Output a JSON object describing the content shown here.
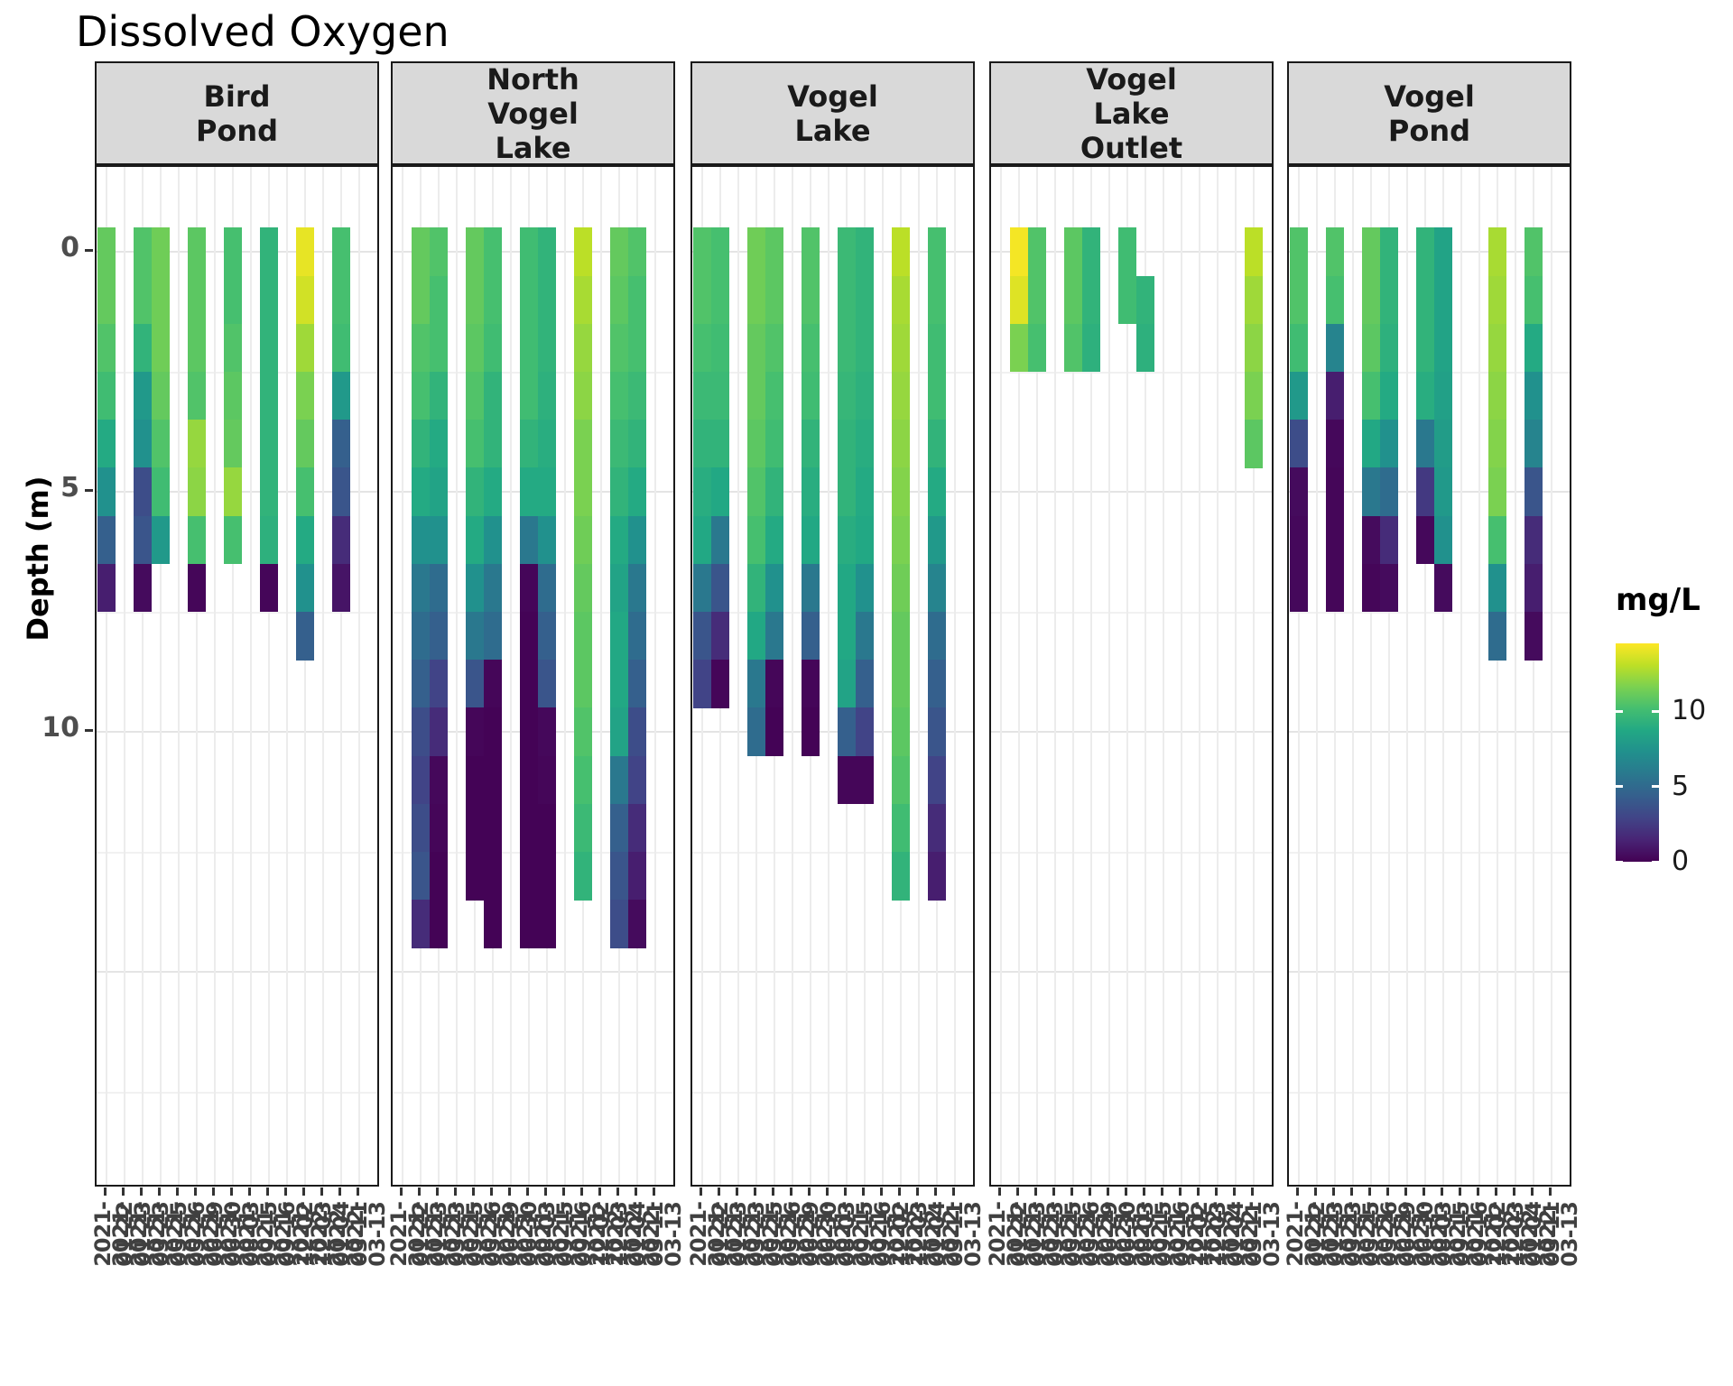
{
  "title": "Dissolved Oxygen",
  "y_axis": {
    "title": "Depth (m)",
    "tick_labels": [
      "0",
      "5",
      "10"
    ],
    "tick_depths": [
      0,
      5,
      10
    ]
  },
  "legend": {
    "title": "mg/L",
    "tick_labels": [
      "10",
      "5",
      "0"
    ],
    "tick_values": [
      10,
      5,
      0
    ],
    "domain_min": 0,
    "domain_max": 14.5
  },
  "colors": {
    "strip_fill": "#d9d9d9",
    "panel_border": "#1a1a1a",
    "viridis_low": "#440154",
    "viridis_mid": "#21918c",
    "viridis_high": "#fde725"
  },
  "chart_data": {
    "type": "heatmap",
    "title": "Dissolved Oxygen",
    "xlabel": "",
    "ylabel": "Depth (m)",
    "value_label": "mg/L",
    "value_range": [
      0,
      14.5
    ],
    "depth_range": [
      0,
      14
    ],
    "grid": true,
    "legend_position": "right",
    "x_dates": [
      "2021-01-22",
      "2021-01-23",
      "2021-03-23",
      "2021-05-25",
      "2021-05-26",
      "2021-06-29",
      "2021-06-30",
      "2021-08-03",
      "2021-09-15",
      "2021-09-16",
      "2021-12-02",
      "2021-12-03",
      "2022-01-04",
      "2022-03-11",
      "2022-03-13"
    ],
    "facets": [
      {
        "site": "Bird Pond",
        "profiles": [
          {
            "date": "2021-01-22",
            "start_depth": 0,
            "values": [
              11,
              11,
              10.5,
              10,
              8.8,
              7.3,
              4.4,
              1.2
            ]
          },
          {
            "date": "2021-03-23",
            "start_depth": 0,
            "values": [
              10.5,
              10.5,
              9.4,
              7.8,
              7.3,
              3.4,
              3.8,
              0.4
            ]
          },
          {
            "date": "2021-05-25",
            "start_depth": 0,
            "values": [
              11.3,
              11.3,
              11.3,
              11,
              10.5,
              10,
              7.8
            ]
          },
          {
            "date": "2021-06-29",
            "start_depth": 0,
            "values": [
              10.8,
              10.8,
              10.8,
              10.5,
              12.2,
              12,
              10.2,
              0.2
            ]
          },
          {
            "date": "2021-08-03",
            "start_depth": 0,
            "values": [
              10.2,
              10.2,
              10.5,
              10.8,
              11,
              12.2,
              10.2
            ]
          },
          {
            "date": "2021-09-16",
            "start_depth": 0,
            "values": [
              9.4,
              9.4,
              9.4,
              9.4,
              9.4,
              9.4,
              9.2,
              0.2
            ]
          },
          {
            "date": "2021-12-03",
            "start_depth": 0,
            "values": [
              14,
              13.5,
              12.4,
              11.6,
              11,
              10.2,
              8.8,
              7.3,
              4.4
            ]
          },
          {
            "date": "2022-03-11",
            "start_depth": 0,
            "values": [
              10.2,
              10.2,
              10,
              7.8,
              4.4,
              3.8,
              1.8,
              0.8
            ]
          }
        ]
      },
      {
        "site": "North Vogel Lake",
        "profiles": [
          {
            "date": "2021-01-23",
            "start_depth": 0,
            "values": [
              11,
              11,
              10.5,
              10.2,
              9.4,
              8.8,
              7.3,
              5.8,
              5.1,
              4.4,
              3.4,
              2.9,
              3.4,
              3.8,
              1.8
            ]
          },
          {
            "date": "2021-03-23",
            "start_depth": 0,
            "values": [
              10.5,
              10.2,
              10.2,
              9.4,
              8.8,
              8.4,
              7.3,
              5.1,
              4.4,
              2.9,
              1.8,
              0.3,
              0.2,
              0.1,
              0.1
            ]
          },
          {
            "date": "2021-05-26",
            "start_depth": 0,
            "values": [
              11,
              11,
              10.8,
              10.5,
              10.2,
              9.4,
              8.8,
              7.3,
              5.8,
              3.8,
              0.2,
              0.1,
              0.1,
              0.1
            ]
          },
          {
            "date": "2021-06-29",
            "start_depth": 0,
            "values": [
              10.2,
              10.2,
              10,
              9.4,
              9.4,
              8.8,
              7.3,
              5.8,
              5.1,
              0.2,
              0.1,
              0.1,
              0.1,
              0.1,
              0.1
            ]
          },
          {
            "date": "2021-08-03",
            "start_depth": 0,
            "values": [
              10,
              10,
              10,
              10,
              9.4,
              8.8,
              5.8,
              0.2,
              0.1,
              0.1,
              0.1,
              0.1,
              0.1,
              0.1,
              0.1
            ]
          },
          {
            "date": "2021-09-15",
            "start_depth": 0,
            "values": [
              9.4,
              9.4,
              9.4,
              9.2,
              9,
              8.8,
              7.3,
              5.1,
              4.4,
              3.8,
              0.3,
              0.2,
              0.1,
              0.1,
              0.1
            ]
          },
          {
            "date": "2021-12-02",
            "start_depth": 0,
            "values": [
              13,
              12.6,
              12.2,
              12,
              11.6,
              11.6,
              11.3,
              11,
              10.8,
              10.8,
              10.5,
              10.2,
              9.8,
              9.4
            ]
          },
          {
            "date": "2022-01-04",
            "start_depth": 0,
            "values": [
              11,
              10.8,
              10.5,
              10.2,
              9.8,
              9.4,
              8.8,
              8.4,
              8.7,
              8.7,
              8.4,
              5.8,
              4.4,
              3.8,
              3.4
            ]
          },
          {
            "date": "2022-03-11",
            "start_depth": 0,
            "values": [
              10.5,
              10.2,
              10.2,
              9.8,
              9.4,
              8.8,
              7.3,
              5.8,
              5.1,
              4.4,
              3.4,
              2.9,
              1.8,
              1.2,
              0.4
            ]
          }
        ]
      },
      {
        "site": "Vogel Lake",
        "profiles": [
          {
            "date": "2021-01-22",
            "start_depth": 0,
            "values": [
              10.5,
              10.5,
              10.2,
              9.8,
              9.4,
              9,
              8.7,
              5.8,
              3.8,
              2.9
            ]
          },
          {
            "date": "2021-01-23",
            "start_depth": 0,
            "values": [
              10.2,
              10.2,
              10,
              9.8,
              9.4,
              8.7,
              5.8,
              3.8,
              1.8,
              0.2
            ]
          },
          {
            "date": "2021-05-25",
            "start_depth": 0,
            "values": [
              11.3,
              11.3,
              11,
              11,
              10.8,
              10.5,
              10.2,
              9.4,
              8.7,
              5.8,
              5.1
            ]
          },
          {
            "date": "2021-05-26",
            "start_depth": 0,
            "values": [
              10.8,
              10.8,
              10.5,
              10.2,
              10,
              9.4,
              8.8,
              7.3,
              5.8,
              0.2,
              0.1
            ]
          },
          {
            "date": "2021-06-30",
            "start_depth": 0,
            "values": [
              10.5,
              10.5,
              10.2,
              10,
              9.4,
              9,
              8.7,
              5.8,
              4.4,
              0.2,
              0.1
            ]
          },
          {
            "date": "2021-09-15",
            "start_depth": 0,
            "values": [
              9.8,
              9.8,
              9.8,
              9.6,
              9.4,
              9.4,
              9,
              8.7,
              8.7,
              8.4,
              4.4,
              0.2
            ]
          },
          {
            "date": "2021-09-16",
            "start_depth": 0,
            "values": [
              9.4,
              9.4,
              9.4,
              9.2,
              9,
              8.8,
              8.7,
              7.3,
              5.8,
              4.4,
              2.9,
              0.2
            ]
          },
          {
            "date": "2021-12-03",
            "start_depth": 0,
            "values": [
              13,
              12.6,
              12.4,
              12.2,
              12,
              11.8,
              11.6,
              11.3,
              11,
              11,
              10.8,
              10.5,
              10,
              9.4
            ]
          },
          {
            "date": "2022-03-11",
            "start_depth": 0,
            "values": [
              10.2,
              10.2,
              10,
              10,
              9.4,
              8.8,
              7.8,
              6.5,
              5.1,
              4.4,
              3.8,
              2.9,
              1.8,
              1.2
            ]
          }
        ]
      },
      {
        "site": "Vogel Lake Outlet",
        "profiles": [
          {
            "date": "2021-01-23",
            "start_depth": 0,
            "values": [
              14.3,
              13.8,
              11.6
            ]
          },
          {
            "date": "2021-03-23",
            "start_depth": 0,
            "values": [
              10.5,
              10.5,
              10.2
            ]
          },
          {
            "date": "2021-05-26",
            "start_depth": 0,
            "values": [
              10.8,
              10.8,
              10.5
            ]
          },
          {
            "date": "2021-06-29",
            "start_depth": 0,
            "values": [
              9.4,
              9.4,
              9.2
            ]
          },
          {
            "date": "2021-08-03",
            "start_depth": 0,
            "values": [
              10,
              10
            ]
          },
          {
            "date": "2021-09-15",
            "start_depth": 1,
            "values": [
              9.4,
              9.2
            ]
          },
          {
            "date": "2022-03-13",
            "start_depth": 0,
            "values": [
              13,
              12.4,
              12,
              11.6,
              10.8
            ]
          }
        ]
      },
      {
        "site": "Vogel Pond",
        "profiles": [
          {
            "date": "2021-01-22",
            "start_depth": 0,
            "values": [
              10.5,
              10.5,
              10,
              7.8,
              3.4,
              0.4,
              0.3,
              0.3
            ]
          },
          {
            "date": "2021-03-23",
            "start_depth": 0,
            "values": [
              10.5,
              10.2,
              6.5,
              1.2,
              0.3,
              0.2,
              0.2,
              0.2
            ]
          },
          {
            "date": "2021-05-26",
            "start_depth": 0,
            "values": [
              11,
              11,
              10.8,
              10.2,
              8.7,
              5.8,
              0.4,
              0.2
            ]
          },
          {
            "date": "2021-06-29",
            "start_depth": 0,
            "values": [
              9.4,
              9.4,
              9.2,
              8.8,
              7.3,
              5.1,
              1.8,
              0.4
            ]
          },
          {
            "date": "2021-08-03",
            "start_depth": 0,
            "values": [
              9.4,
              9.4,
              9.4,
              9,
              5.8,
              2.4,
              0.3
            ]
          },
          {
            "date": "2021-09-15",
            "start_depth": 0,
            "values": [
              8.4,
              8.4,
              8.4,
              8.2,
              8,
              7.8,
              7.3,
              0.4
            ]
          },
          {
            "date": "2021-12-03",
            "start_depth": 0,
            "values": [
              12.6,
              12.4,
              12.2,
              12,
              11.8,
              11.6,
              10.2,
              7.3,
              5.1
            ]
          },
          {
            "date": "2022-03-11",
            "start_depth": 0,
            "values": [
              10.5,
              10.2,
              8.8,
              7.3,
              6.5,
              3.8,
              1.8,
              1.2,
              0.4
            ]
          }
        ]
      }
    ]
  }
}
